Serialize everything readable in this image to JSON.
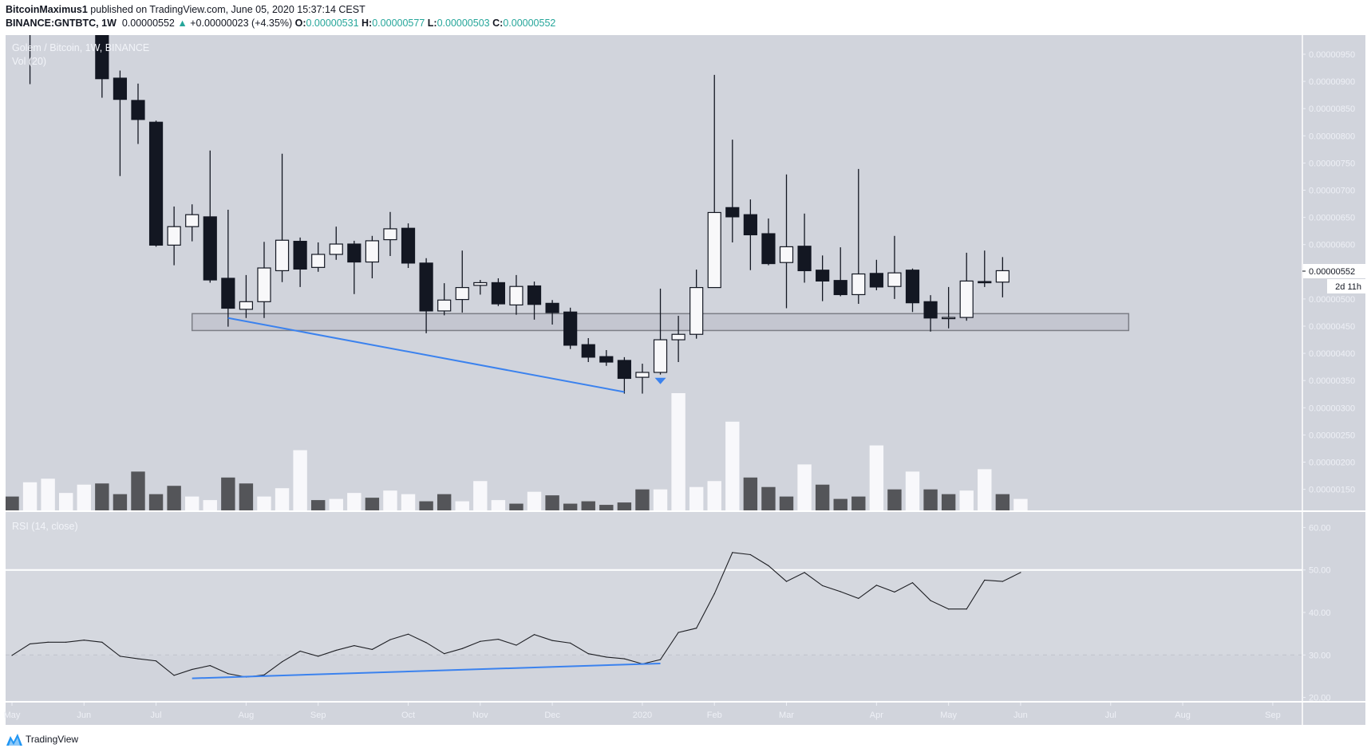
{
  "header": {
    "author": "BitcoinMaximus1",
    "published": " published on TradingView.com, June 05, 2020 15:37:14 CEST",
    "symbol": "BINANCE:GNTBTC, 1W",
    "last": "0.00000552",
    "change": "+0.00000023 (+4.35%)",
    "o_label": "O:",
    "o": "0.00000531",
    "h_label": "H:",
    "h": "0.00000577",
    "l_label": "L:",
    "l": "0.00000503",
    "c_label": "C:",
    "c": "0.00000552",
    "change_direction_icon": "triangle-up-icon"
  },
  "legend": {
    "main": "Golem / Bitcoin, 1W, BINANCE",
    "volume": "Vol (20)",
    "rsi": "RSI (14, close)"
  },
  "price_label": {
    "value": "0.00000552",
    "countdown": "2d 11h"
  },
  "footer": {
    "brand": "TradingView"
  },
  "colors": {
    "background": "#d1d4dc",
    "candle_down": "#131722",
    "candle_up": "#f8f8fa",
    "volume_down": "#545559",
    "volume_up": "#f8f8fb",
    "trendline": "#3b82ee",
    "positive_text": "#26a69a"
  },
  "chart_data": [
    {
      "type": "candlestick",
      "interval": "1W",
      "price_unit": "BTC",
      "price_axis_ticks": [
        "0.00000950",
        "0.00000900",
        "0.00000850",
        "0.00000800",
        "0.00000750",
        "0.00000700",
        "0.00000650",
        "0.00000600",
        "0.00000500",
        "0.00000450",
        "0.00000400",
        "0.00000350",
        "0.00000300",
        "0.00000250",
        "0.00000200",
        "0.00000150"
      ],
      "ylim": [
        1.2e-06,
        9.6e-06
      ],
      "time_axis_labels": [
        {
          "label": "May",
          "date": "2019-05-06"
        },
        {
          "label": "Jun",
          "date": "2019-06-03"
        },
        {
          "label": "Jul",
          "date": "2019-07-01"
        },
        {
          "label": "Aug",
          "date": "2019-08-05"
        },
        {
          "label": "Sep",
          "date": "2019-09-02"
        },
        {
          "label": "Oct",
          "date": "2019-10-07"
        },
        {
          "label": "Nov",
          "date": "2019-11-04"
        },
        {
          "label": "Dec",
          "date": "2019-12-02"
        },
        {
          "label": "2020",
          "date": "2020-01-06"
        },
        {
          "label": "Feb",
          "date": "2020-02-03"
        },
        {
          "label": "Mar",
          "date": "2020-03-02"
        },
        {
          "label": "Apr",
          "date": "2020-04-06"
        },
        {
          "label": "May",
          "date": "2020-05-04"
        },
        {
          "label": "Jun",
          "date": "2020-06-01"
        },
        {
          "label": "Jul",
          "date": "2020-07-06"
        },
        {
          "label": "Aug",
          "date": "2020-08-03"
        },
        {
          "label": "Sep",
          "date": "2020-09-07"
        }
      ],
      "first_week": "2019-05-06",
      "candles": [
        {
          "date": "2019-05-13",
          "o": null,
          "h": null,
          "l": 8.95e-06,
          "c": null
        },
        {
          "date": "2019-06-10",
          "o": null,
          "h": null,
          "l": 8.7e-06,
          "c": 9.05e-06
        },
        {
          "date": "2019-06-17",
          "o": 9.06e-06,
          "h": 9.2e-06,
          "l": 7.26e-06,
          "c": 8.67e-06
        },
        {
          "date": "2019-06-24",
          "o": 8.65e-06,
          "h": 8.96e-06,
          "l": 7.85e-06,
          "c": 8.3e-06
        },
        {
          "date": "2019-07-01",
          "o": 8.25e-06,
          "h": 8.28e-06,
          "l": 5.96e-06,
          "c": 5.99e-06
        },
        {
          "date": "2019-07-08",
          "o": 5.99e-06,
          "h": 6.7e-06,
          "l": 5.62e-06,
          "c": 6.33e-06
        },
        {
          "date": "2019-07-15",
          "o": 6.33e-06,
          "h": 6.74e-06,
          "l": 6.06e-06,
          "c": 6.55e-06
        },
        {
          "date": "2019-07-22",
          "o": 6.51e-06,
          "h": 7.73e-06,
          "l": 5.3e-06,
          "c": 5.35e-06
        },
        {
          "date": "2019-07-29",
          "o": 5.38e-06,
          "h": 6.64e-06,
          "l": 4.49e-06,
          "c": 4.83e-06
        },
        {
          "date": "2019-08-05",
          "o": 4.81e-06,
          "h": 5.44e-06,
          "l": 4.65e-06,
          "c": 4.95e-06
        },
        {
          "date": "2019-08-12",
          "o": 4.95e-06,
          "h": 6.05e-06,
          "l": 4.65e-06,
          "c": 5.57e-06
        },
        {
          "date": "2019-08-19",
          "o": 5.52e-06,
          "h": 7.67e-06,
          "l": 5.31e-06,
          "c": 6.08e-06
        },
        {
          "date": "2019-08-26",
          "o": 6.06e-06,
          "h": 6.13e-06,
          "l": 5.22e-06,
          "c": 5.55e-06
        },
        {
          "date": "2019-09-02",
          "o": 5.58e-06,
          "h": 6.04e-06,
          "l": 5.5e-06,
          "c": 5.82e-06
        },
        {
          "date": "2019-09-09",
          "o": 5.82e-06,
          "h": 6.33e-06,
          "l": 5.72e-06,
          "c": 6.01e-06
        },
        {
          "date": "2019-09-16",
          "o": 6.01e-06,
          "h": 6.07e-06,
          "l": 5.09e-06,
          "c": 5.68e-06
        },
        {
          "date": "2019-09-23",
          "o": 5.68e-06,
          "h": 6.16e-06,
          "l": 5.38e-06,
          "c": 6.07e-06
        },
        {
          "date": "2019-09-30",
          "o": 6.09e-06,
          "h": 6.6e-06,
          "l": 5.79e-06,
          "c": 6.29e-06
        },
        {
          "date": "2019-10-07",
          "o": 6.3e-06,
          "h": 6.39e-06,
          "l": 5.57e-06,
          "c": 5.66e-06
        },
        {
          "date": "2019-10-14",
          "o": 5.66e-06,
          "h": 5.75e-06,
          "l": 4.37e-06,
          "c": 4.78e-06
        },
        {
          "date": "2019-10-21",
          "o": 4.78e-06,
          "h": 5.29e-06,
          "l": 4.7e-06,
          "c": 4.98e-06
        },
        {
          "date": "2019-10-28",
          "o": 4.99e-06,
          "h": 5.89e-06,
          "l": 4.75e-06,
          "c": 5.21e-06
        },
        {
          "date": "2019-11-04",
          "o": 5.25e-06,
          "h": 5.35e-06,
          "l": 5.08e-06,
          "c": 5.3e-06
        },
        {
          "date": "2019-11-11",
          "o": 5.3e-06,
          "h": 5.38e-06,
          "l": 4.87e-06,
          "c": 4.91e-06
        },
        {
          "date": "2019-11-18",
          "o": 4.89e-06,
          "h": 5.44e-06,
          "l": 4.71e-06,
          "c": 5.23e-06
        },
        {
          "date": "2019-11-25",
          "o": 5.24e-06,
          "h": 5.32e-06,
          "l": 4.62e-06,
          "c": 4.9e-06
        },
        {
          "date": "2019-12-02",
          "o": 4.92e-06,
          "h": 4.98e-06,
          "l": 4.53e-06,
          "c": 4.75e-06
        },
        {
          "date": "2019-12-09",
          "o": 4.76e-06,
          "h": 4.84e-06,
          "l": 4.08e-06,
          "c": 4.15e-06
        },
        {
          "date": "2019-12-16",
          "o": 4.16e-06,
          "h": 4.28e-06,
          "l": 3.84e-06,
          "c": 3.93e-06
        },
        {
          "date": "2019-12-23",
          "o": 3.94e-06,
          "h": 4.06e-06,
          "l": 3.77e-06,
          "c": 3.84e-06
        },
        {
          "date": "2019-12-30",
          "o": 3.87e-06,
          "h": 3.93e-06,
          "l": 3.26e-06,
          "c": 3.54e-06
        },
        {
          "date": "2020-01-06",
          "o": 3.56e-06,
          "h": 3.81e-06,
          "l": 3.26e-06,
          "c": 3.65e-06
        },
        {
          "date": "2020-01-13",
          "o": 3.65e-06,
          "h": 5.19e-06,
          "l": 3.61e-06,
          "c": 4.25e-06
        },
        {
          "date": "2020-01-20",
          "o": 4.25e-06,
          "h": 4.69e-06,
          "l": 3.84e-06,
          "c": 4.35e-06
        },
        {
          "date": "2020-01-27",
          "o": 4.35e-06,
          "h": 5.54e-06,
          "l": 4.27e-06,
          "c": 5.21e-06
        },
        {
          "date": "2020-02-03",
          "o": 5.21e-06,
          "h": 9.12e-06,
          "l": 5.21e-06,
          "c": 6.59e-06
        },
        {
          "date": "2020-02-10",
          "o": 6.68e-06,
          "h": 7.93e-06,
          "l": 6.04e-06,
          "c": 6.51e-06
        },
        {
          "date": "2020-02-17",
          "o": 6.55e-06,
          "h": 6.83e-06,
          "l": 5.53e-06,
          "c": 6.18e-06
        },
        {
          "date": "2020-02-24",
          "o": 6.2e-06,
          "h": 6.48e-06,
          "l": 5.62e-06,
          "c": 5.65e-06
        },
        {
          "date": "2020-03-02",
          "o": 5.67e-06,
          "h": 7.29e-06,
          "l": 4.83e-06,
          "c": 5.96e-06
        },
        {
          "date": "2020-03-09",
          "o": 5.97e-06,
          "h": 6.57e-06,
          "l": 5.3e-06,
          "c": 5.52e-06
        },
        {
          "date": "2020-03-16",
          "o": 5.53e-06,
          "h": 5.8e-06,
          "l": 4.96e-06,
          "c": 5.33e-06
        },
        {
          "date": "2020-03-23",
          "o": 5.34e-06,
          "h": 5.95e-06,
          "l": 5.05e-06,
          "c": 5.08e-06
        },
        {
          "date": "2020-03-30",
          "o": 5.08e-06,
          "h": 7.39e-06,
          "l": 4.91e-06,
          "c": 5.46e-06
        },
        {
          "date": "2020-04-06",
          "o": 5.47e-06,
          "h": 5.72e-06,
          "l": 5.16e-06,
          "c": 5.22e-06
        },
        {
          "date": "2020-04-13",
          "o": 5.23e-06,
          "h": 6.16e-06,
          "l": 5e-06,
          "c": 5.48e-06
        },
        {
          "date": "2020-04-20",
          "o": 5.53e-06,
          "h": 5.56e-06,
          "l": 4.76e-06,
          "c": 4.93e-06
        },
        {
          "date": "2020-04-27",
          "o": 4.95e-06,
          "h": 5.07e-06,
          "l": 4.4e-06,
          "c": 4.65e-06
        },
        {
          "date": "2020-05-04",
          "o": 4.66e-06,
          "h": 5.22e-06,
          "l": 4.46e-06,
          "c": 4.66e-06
        },
        {
          "date": "2020-05-11",
          "o": 4.66e-06,
          "h": 5.85e-06,
          "l": 4.6e-06,
          "c": 5.33e-06
        },
        {
          "date": "2020-05-18",
          "o": 5.32e-06,
          "h": 5.89e-06,
          "l": 5.22e-06,
          "c": 5.3e-06
        },
        {
          "date": "2020-05-25",
          "o": 5.31e-06,
          "h": 5.77e-06,
          "l": 5.03e-06,
          "c": 5.52e-06
        }
      ],
      "support_zone": {
        "from": "2019-07-15",
        "to": "2020-07-13",
        "low": 4.42e-06,
        "high": 4.73e-06
      },
      "trendline": {
        "from": {
          "date": "2019-07-29",
          "price": 4.65e-06
        },
        "to": {
          "date": "2019-12-30",
          "price": 3.29e-06
        }
      },
      "marker": {
        "date": "2020-01-13",
        "shape": "arrow-down",
        "color": "#3b82ee"
      }
    },
    {
      "type": "bar",
      "name": "Vol (20)",
      "unit": "percent of largest visible bar",
      "values": [
        13,
        25,
        28,
        16,
        23,
        24,
        15,
        34,
        15,
        22,
        13,
        10,
        29,
        24,
        13,
        20,
        52,
        10,
        11,
        16,
        12,
        18,
        15,
        9,
        15,
        9,
        26,
        10,
        7,
        17,
        14,
        7,
        9,
        6,
        8,
        19,
        19,
        100,
        21,
        26,
        76,
        29,
        21,
        13,
        40,
        23,
        11,
        13,
        56,
        19,
        34,
        19,
        15,
        18,
        36,
        15,
        11
      ],
      "direction": [
        "down",
        "up",
        "up",
        "up",
        "up",
        "down",
        "down",
        "down",
        "down",
        "down",
        "up",
        "up",
        "down",
        "down",
        "up",
        "up",
        "up",
        "down",
        "up",
        "up",
        "down",
        "up",
        "up",
        "down",
        "down",
        "up",
        "up",
        "up",
        "down",
        "up",
        "down",
        "down",
        "down",
        "down",
        "down",
        "down",
        "up",
        "up",
        "up",
        "up",
        "up",
        "down",
        "down",
        "down",
        "up",
        "down",
        "down",
        "down",
        "up",
        "down",
        "up",
        "down",
        "down",
        "up",
        "up",
        "down",
        "up"
      ]
    },
    {
      "type": "line",
      "name": "RSI (14, close)",
      "ylim": [
        18,
        65
      ],
      "ticks": [
        "60.00",
        "50.00",
        "40.00",
        "30.00",
        "20.00"
      ],
      "reference_lines": {
        "solid": 50,
        "dashed": 30
      },
      "values": [
        29.9,
        32.6,
        33.0,
        33.0,
        33.5,
        33.0,
        29.7,
        29.1,
        28.6,
        25.2,
        26.6,
        27.5,
        25.6,
        24.8,
        25.3,
        28.4,
        30.9,
        29.7,
        31.1,
        32.2,
        31.3,
        33.6,
        34.9,
        32.9,
        30.3,
        31.5,
        33.2,
        33.7,
        32.3,
        34.8,
        33.4,
        32.8,
        30.3,
        29.5,
        29.1,
        27.9,
        28.9,
        35.3,
        36.3,
        44.4,
        54.1,
        53.6,
        51.0,
        47.3,
        49.4,
        46.3,
        44.9,
        43.3,
        46.4,
        44.8,
        47.0,
        42.8,
        40.8,
        40.8,
        47.6,
        47.3,
        49.4
      ],
      "trendline": {
        "from": {
          "date": "2019-07-15",
          "value": 24.5
        },
        "to": {
          "date": "2020-01-13",
          "value": 28.0
        }
      }
    }
  ]
}
